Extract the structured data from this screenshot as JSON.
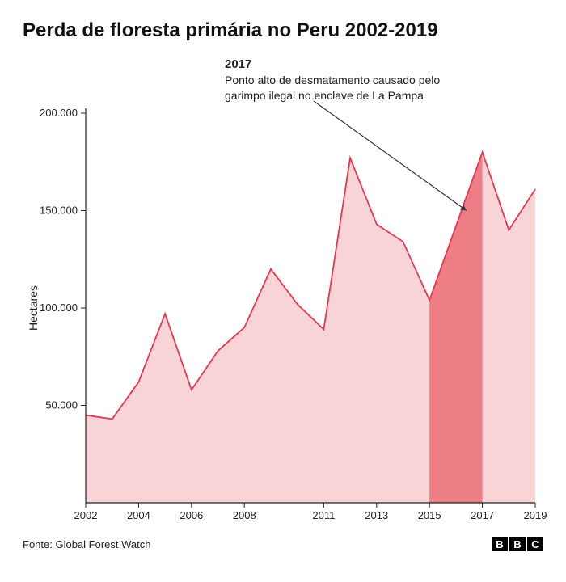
{
  "title": "Perda de floresta primária no Peru 2002-2019",
  "annotation": {
    "year": "2017",
    "text": "Ponto alto de desmatamento causado pelo garimpo ilegal no enclave de La Pampa"
  },
  "chart": {
    "type": "area",
    "ylabel": "Hectares",
    "ylim": [
      0,
      200000
    ],
    "yticks": [
      50000,
      100000,
      150000,
      200000
    ],
    "ytick_labels": [
      "50.000",
      "100.000",
      "150.000",
      "200.000"
    ],
    "xlim": [
      2002,
      2019
    ],
    "xticks": [
      2002,
      2004,
      2006,
      2008,
      2011,
      2013,
      2015,
      2017,
      2019
    ],
    "xtick_labels": [
      "2002",
      "2004",
      "2006",
      "2008",
      "2011",
      "2013",
      "2015",
      "2017",
      "2019"
    ],
    "years": [
      2002,
      2003,
      2004,
      2005,
      2006,
      2007,
      2008,
      2009,
      2010,
      2011,
      2012,
      2013,
      2014,
      2015,
      2016,
      2017,
      2018,
      2019
    ],
    "values": [
      45000,
      43000,
      62000,
      97000,
      58000,
      78000,
      90000,
      120000,
      102000,
      89000,
      177000,
      143000,
      134000,
      104000,
      142000,
      180000,
      140000,
      161000
    ],
    "highlight_band": {
      "from_year": 2015,
      "to_year": 2017
    },
    "colors": {
      "line": "#e8384f",
      "fill": "#f9d4d7",
      "highlight_fill": "#ee7e86",
      "axis": "#222222",
      "grid": "#bdbdbd",
      "background": "#ffffff",
      "annotation_arrow": "#333333"
    },
    "line_width": 1.8,
    "label_fontsize": 13
  },
  "footer": {
    "source_prefix": "Fonte: ",
    "source": "Global Forest Watch",
    "logo": [
      "B",
      "B",
      "C"
    ]
  }
}
